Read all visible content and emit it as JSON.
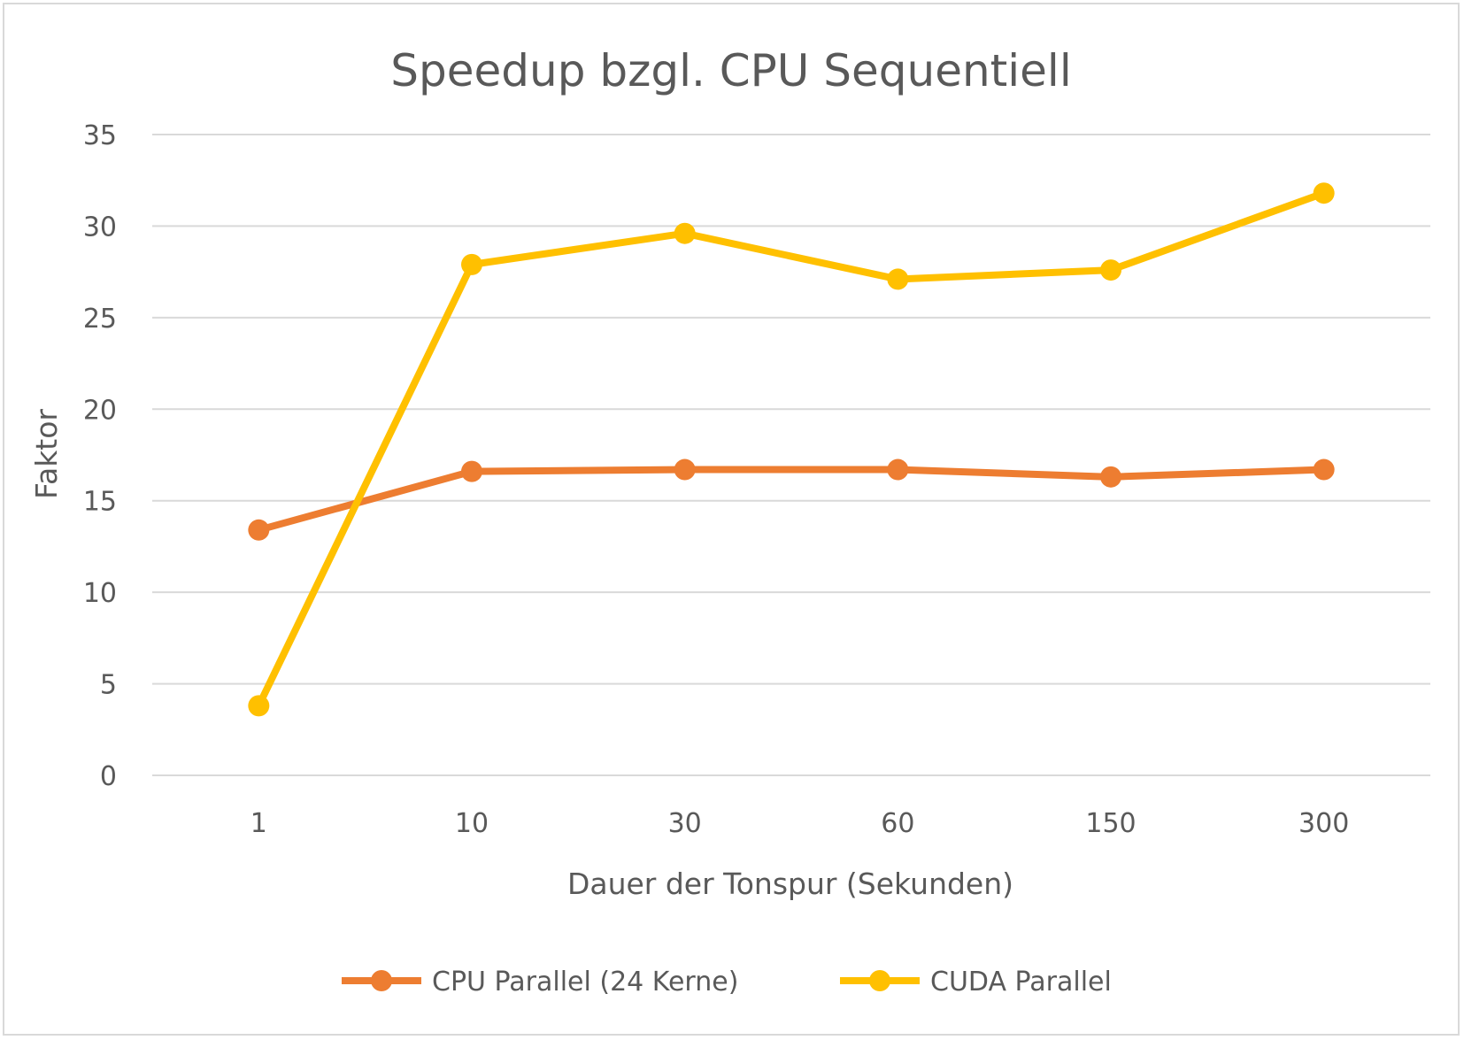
{
  "chart_data": {
    "type": "line",
    "title": "Speedup bzgl. CPU Sequentiell",
    "xlabel": "Dauer der Tonspur (Sekunden)",
    "ylabel": "Faktor",
    "categories": [
      "1",
      "10",
      "30",
      "60",
      "150",
      "300"
    ],
    "ylim": [
      0,
      35
    ],
    "yticks": [
      "0",
      "5",
      "10",
      "15",
      "20",
      "25",
      "30",
      "35"
    ],
    "grid": true,
    "legend_position": "bottom",
    "series": [
      {
        "name": "CPU Parallel (24 Kerne)",
        "color": "#ed7d31",
        "values": [
          13.4,
          16.6,
          16.7,
          16.7,
          16.3,
          16.7
        ]
      },
      {
        "name": "CUDA Parallel",
        "color": "#ffc000",
        "values": [
          3.8,
          27.9,
          29.6,
          27.1,
          27.6,
          31.8
        ]
      }
    ]
  }
}
